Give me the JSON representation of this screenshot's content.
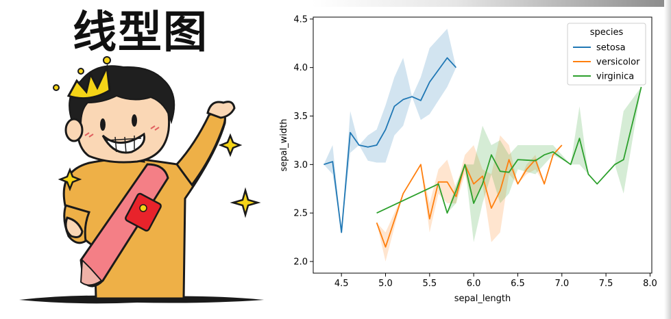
{
  "meme": {
    "banner_text": "线型图",
    "illustration": "cartoon-boy-with-crown-and-sash",
    "colors": {
      "shirt": "#eeb047",
      "sash": "#f47f86",
      "crown": "#f5d417",
      "hair": "#1f1f1f",
      "skin": "#fad7b5"
    }
  },
  "chart_data": {
    "type": "line",
    "xlabel": "sepal_length",
    "ylabel": "sepal_width",
    "xlim": [
      4.18,
      8.02
    ],
    "ylim": [
      1.88,
      4.52
    ],
    "xticks": [
      "4.5",
      "5.0",
      "5.5",
      "6.0",
      "6.5",
      "7.0",
      "7.5",
      "8.0"
    ],
    "yticks": [
      "2.0",
      "2.5",
      "3.0",
      "3.5",
      "4.0",
      "4.5"
    ],
    "legend": {
      "title": "species",
      "placement": "top-right"
    },
    "grid": false,
    "series": [
      {
        "name": "setosa",
        "color": "#1f77b4",
        "x": [
          4.3,
          4.4,
          4.5,
          4.6,
          4.7,
          4.8,
          4.9,
          5.0,
          5.1,
          5.2,
          5.3,
          5.4,
          5.5,
          5.7,
          5.8
        ],
        "y": [
          3.0,
          3.03,
          2.3,
          3.33,
          3.2,
          3.18,
          3.2,
          3.36,
          3.6,
          3.67,
          3.7,
          3.66,
          3.85,
          4.1,
          4.0
        ],
        "ci_low": [
          3.0,
          2.9,
          2.3,
          3.12,
          3.2,
          3.04,
          3.02,
          3.02,
          3.3,
          3.4,
          3.7,
          3.46,
          3.52,
          3.8,
          4.0
        ],
        "ci_high": [
          3.0,
          3.2,
          2.3,
          3.55,
          3.2,
          3.3,
          3.36,
          3.61,
          3.9,
          4.1,
          3.7,
          3.9,
          4.2,
          4.4,
          4.0
        ]
      },
      {
        "name": "versicolor",
        "color": "#ff7f0e",
        "x": [
          4.9,
          5.0,
          5.2,
          5.4,
          5.5,
          5.6,
          5.7,
          5.8,
          5.9,
          6.0,
          6.1,
          6.2,
          6.3,
          6.4,
          6.5,
          6.6,
          6.7,
          6.8,
          6.9,
          7.0
        ],
        "y": [
          2.4,
          2.15,
          2.7,
          3.0,
          2.44,
          2.82,
          2.82,
          2.67,
          3.0,
          2.8,
          2.88,
          2.55,
          2.73,
          3.05,
          2.8,
          2.95,
          3.05,
          2.8,
          3.1,
          3.2
        ],
        "ci_low": [
          2.4,
          2.0,
          2.7,
          3.0,
          2.3,
          2.7,
          2.6,
          2.6,
          2.9,
          2.6,
          2.8,
          2.2,
          2.3,
          2.9,
          2.8,
          2.9,
          2.95,
          2.8,
          3.1,
          3.2
        ],
        "ci_high": [
          2.4,
          2.3,
          2.7,
          3.0,
          2.6,
          2.95,
          3.05,
          2.75,
          3.1,
          3.2,
          2.95,
          2.9,
          3.3,
          3.2,
          2.8,
          3.0,
          3.1,
          2.8,
          3.1,
          3.2
        ]
      },
      {
        "name": "virginica",
        "color": "#2ca02c",
        "x": [
          4.9,
          5.6,
          5.7,
          5.8,
          5.9,
          6.0,
          6.1,
          6.2,
          6.3,
          6.4,
          6.5,
          6.7,
          6.8,
          6.9,
          7.1,
          7.2,
          7.3,
          7.4,
          7.6,
          7.7,
          7.9
        ],
        "y": [
          2.5,
          2.8,
          2.5,
          2.73,
          3.0,
          2.6,
          2.8,
          3.1,
          2.93,
          2.92,
          3.05,
          3.04,
          3.1,
          3.13,
          3.0,
          3.27,
          2.9,
          2.8,
          3.0,
          3.05,
          3.8
        ],
        "ci_low": [
          2.5,
          2.8,
          2.5,
          2.6,
          3.0,
          2.2,
          2.6,
          2.9,
          2.6,
          2.7,
          2.95,
          2.9,
          3.0,
          3.1,
          3.0,
          3.0,
          2.9,
          2.8,
          3.0,
          2.7,
          3.8
        ],
        "ci_high": [
          2.5,
          2.8,
          2.5,
          2.8,
          3.0,
          3.0,
          3.4,
          3.2,
          3.25,
          3.1,
          3.2,
          3.2,
          3.2,
          3.2,
          3.0,
          3.6,
          2.9,
          2.8,
          3.0,
          3.55,
          3.8
        ]
      }
    ]
  }
}
